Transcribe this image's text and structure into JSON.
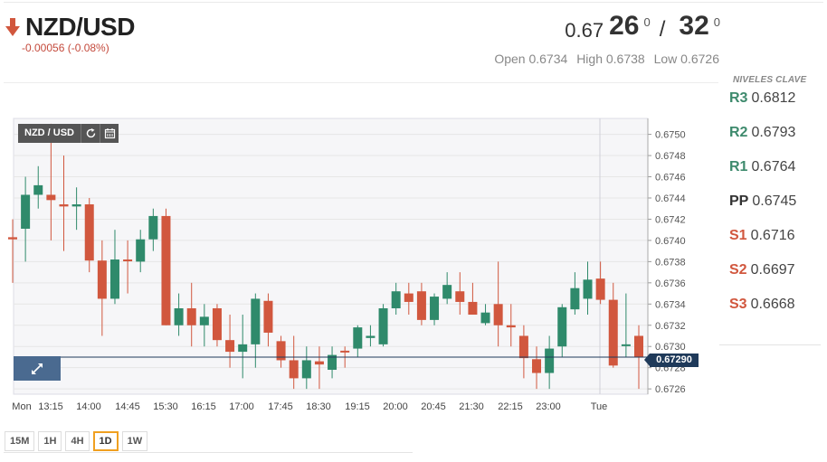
{
  "header": {
    "pair": "NZD/USD",
    "change": "-0.00056 (-0.08%)",
    "trend_icon": "down-arrow-icon",
    "trend_color": "#d1573e"
  },
  "quote": {
    "prefix": "0.67",
    "bid_big": "26",
    "bid_sup": "0",
    "separator": "/",
    "ask_big": "32",
    "ask_sup": "0"
  },
  "ohl": {
    "open": "Open 0.6734",
    "high": "High 0.6738",
    "low": "Low 0.6726"
  },
  "key_levels": {
    "title": "NIVELES CLAVE",
    "items": [
      {
        "label": "R3",
        "value": "0.6812"
      },
      {
        "label": "R2",
        "value": "0.6793"
      },
      {
        "label": "R1",
        "value": "0.6764"
      },
      {
        "label": "PP",
        "value": "0.6745"
      },
      {
        "label": "S1",
        "value": "0.6716"
      },
      {
        "label": "S2",
        "value": "0.6697"
      },
      {
        "label": "S3",
        "value": "0.6668"
      }
    ]
  },
  "chart_toolbar": {
    "label": "NZD / USD",
    "refresh_icon": "refresh-icon",
    "calendar_icon": "calendar-icon"
  },
  "timeframes": [
    "15M",
    "1H",
    "4H",
    "1D",
    "1W"
  ],
  "active_timeframe": "1D",
  "colors": {
    "up": "#2f8a6b",
    "down": "#d1573e",
    "price_line": "#1f3a5a",
    "grid": "#e6e6e6"
  },
  "chart_data": {
    "type": "candlestick",
    "current_price": 0.6729,
    "current_price_label": "0.67290",
    "ylim": [
      0.67255,
      0.67515
    ],
    "y_ticks": [
      "0.6750",
      "0.6748",
      "0.6746",
      "0.6744",
      "0.6742",
      "0.6740",
      "0.6738",
      "0.6736",
      "0.6734",
      "0.6732",
      "0.6730",
      "0.6728",
      "0.6726"
    ],
    "x_ticks": [
      "Mon",
      "13:15",
      "14:00",
      "14:45",
      "15:30",
      "16:15",
      "17:00",
      "17:45",
      "18:30",
      "19:15",
      "20:00",
      "20:45",
      "21:30",
      "22:15",
      "23:00",
      "Tue"
    ],
    "candles": [
      {
        "o": 0.67403,
        "h": 0.6742,
        "l": 0.6736,
        "c": 0.67401
      },
      {
        "o": 0.67411,
        "h": 0.6746,
        "l": 0.6738,
        "c": 0.67443
      },
      {
        "o": 0.67443,
        "h": 0.6747,
        "l": 0.6743,
        "c": 0.67452
      },
      {
        "o": 0.67443,
        "h": 0.6751,
        "l": 0.674,
        "c": 0.67438
      },
      {
        "o": 0.67434,
        "h": 0.6748,
        "l": 0.6739,
        "c": 0.67432
      },
      {
        "o": 0.67432,
        "h": 0.6745,
        "l": 0.6741,
        "c": 0.67434
      },
      {
        "o": 0.67434,
        "h": 0.6744,
        "l": 0.6737,
        "c": 0.67381
      },
      {
        "o": 0.67381,
        "h": 0.674,
        "l": 0.6731,
        "c": 0.67345
      },
      {
        "o": 0.67345,
        "h": 0.6741,
        "l": 0.6734,
        "c": 0.67382
      },
      {
        "o": 0.67382,
        "h": 0.674,
        "l": 0.6735,
        "c": 0.67381
      },
      {
        "o": 0.6738,
        "h": 0.6741,
        "l": 0.6737,
        "c": 0.67401
      },
      {
        "o": 0.67401,
        "h": 0.6743,
        "l": 0.6739,
        "c": 0.67423
      },
      {
        "o": 0.67423,
        "h": 0.6743,
        "l": 0.6732,
        "c": 0.6732
      },
      {
        "o": 0.6732,
        "h": 0.6735,
        "l": 0.6731,
        "c": 0.67336
      },
      {
        "o": 0.67336,
        "h": 0.6736,
        "l": 0.673,
        "c": 0.6732
      },
      {
        "o": 0.6732,
        "h": 0.6734,
        "l": 0.673,
        "c": 0.67328
      },
      {
        "o": 0.67336,
        "h": 0.6734,
        "l": 0.673,
        "c": 0.67306
      },
      {
        "o": 0.67306,
        "h": 0.6733,
        "l": 0.6728,
        "c": 0.67295
      },
      {
        "o": 0.67295,
        "h": 0.6733,
        "l": 0.6727,
        "c": 0.67302
      },
      {
        "o": 0.67302,
        "h": 0.6735,
        "l": 0.6728,
        "c": 0.67345
      },
      {
        "o": 0.67343,
        "h": 0.6735,
        "l": 0.673,
        "c": 0.67313
      },
      {
        "o": 0.67305,
        "h": 0.6731,
        "l": 0.6728,
        "c": 0.67287
      },
      {
        "o": 0.67287,
        "h": 0.6731,
        "l": 0.6726,
        "c": 0.6727
      },
      {
        "o": 0.6727,
        "h": 0.673,
        "l": 0.6726,
        "c": 0.67287
      },
      {
        "o": 0.67286,
        "h": 0.673,
        "l": 0.6726,
        "c": 0.67283
      },
      {
        "o": 0.67278,
        "h": 0.673,
        "l": 0.6727,
        "c": 0.67292
      },
      {
        "o": 0.67296,
        "h": 0.673,
        "l": 0.6728,
        "c": 0.67295
      },
      {
        "o": 0.67298,
        "h": 0.6732,
        "l": 0.6729,
        "c": 0.67318
      },
      {
        "o": 0.67308,
        "h": 0.6732,
        "l": 0.673,
        "c": 0.6731
      },
      {
        "o": 0.67302,
        "h": 0.6734,
        "l": 0.673,
        "c": 0.67336
      },
      {
        "o": 0.67336,
        "h": 0.6736,
        "l": 0.6733,
        "c": 0.67352
      },
      {
        "o": 0.6735,
        "h": 0.6736,
        "l": 0.6733,
        "c": 0.67342
      },
      {
        "o": 0.67352,
        "h": 0.6736,
        "l": 0.6732,
        "c": 0.67325
      },
      {
        "o": 0.67325,
        "h": 0.6735,
        "l": 0.6732,
        "c": 0.67347
      },
      {
        "o": 0.67345,
        "h": 0.6737,
        "l": 0.6734,
        "c": 0.67358
      },
      {
        "o": 0.67352,
        "h": 0.6737,
        "l": 0.6733,
        "c": 0.67342
      },
      {
        "o": 0.67342,
        "h": 0.6736,
        "l": 0.6733,
        "c": 0.6733
      },
      {
        "o": 0.67322,
        "h": 0.6734,
        "l": 0.6732,
        "c": 0.67332
      },
      {
        "o": 0.6734,
        "h": 0.6738,
        "l": 0.673,
        "c": 0.6732
      },
      {
        "o": 0.6732,
        "h": 0.6734,
        "l": 0.673,
        "c": 0.67318
      },
      {
        "o": 0.6731,
        "h": 0.6732,
        "l": 0.6727,
        "c": 0.67289
      },
      {
        "o": 0.67288,
        "h": 0.673,
        "l": 0.6726,
        "c": 0.67275
      },
      {
        "o": 0.67275,
        "h": 0.6731,
        "l": 0.6726,
        "c": 0.67298
      },
      {
        "o": 0.673,
        "h": 0.6734,
        "l": 0.6729,
        "c": 0.67337
      },
      {
        "o": 0.67335,
        "h": 0.6737,
        "l": 0.6733,
        "c": 0.67355
      },
      {
        "o": 0.67345,
        "h": 0.6738,
        "l": 0.6733,
        "c": 0.67363
      },
      {
        "o": 0.67364,
        "h": 0.6738,
        "l": 0.6734,
        "c": 0.67344
      },
      {
        "o": 0.67344,
        "h": 0.6736,
        "l": 0.6728,
        "c": 0.67282
      },
      {
        "o": 0.67302,
        "h": 0.6735,
        "l": 0.6729,
        "c": 0.67302
      },
      {
        "o": 0.6731,
        "h": 0.6732,
        "l": 0.6726,
        "c": 0.6729
      }
    ]
  }
}
